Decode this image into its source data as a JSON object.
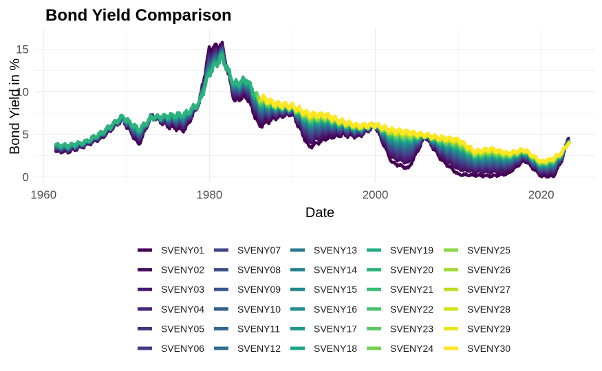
{
  "chart_data": {
    "type": "line",
    "title": "Bond Yield Comparison",
    "xlabel": "Date",
    "ylabel": "Bond Yield in %",
    "xlim": [
      1958.9,
      2026.5
    ],
    "ylim": [
      -0.6,
      17.4
    ],
    "x_ticks": [
      1960,
      1980,
      2000,
      2020
    ],
    "y_ticks": [
      0,
      5,
      10,
      15
    ],
    "grid": true,
    "legend_position": "bottom",
    "short_key": {
      "x": [
        1961.5,
        1963,
        1965,
        1967,
        1969.5,
        1971.5,
        1973,
        1975,
        1977,
        1978.8,
        1980,
        1981.5,
        1983,
        1984.5,
        1986,
        1988,
        1990,
        1992,
        1994,
        1996,
        1998,
        2000,
        2002,
        2004,
        2006,
        2008,
        2010,
        2012,
        2014,
        2016,
        2018,
        2020,
        2021.5,
        2022.5,
        2023.3
      ],
      "y": [
        3.0,
        3.0,
        3.7,
        4.6,
        6.8,
        3.8,
        7.2,
        6.0,
        5.5,
        8.8,
        15.0,
        15.5,
        9.0,
        9.5,
        6.0,
        7.0,
        7.5,
        3.5,
        4.5,
        5.0,
        4.8,
        6.0,
        1.7,
        1.0,
        4.8,
        2.0,
        0.3,
        0.2,
        0.1,
        0.4,
        2.0,
        0.1,
        0.1,
        2.0,
        4.8
      ]
    },
    "long_key": {
      "x": [
        1961.5,
        1963,
        1965,
        1967,
        1969.5,
        1971.5,
        1973,
        1975,
        1977,
        1978.8,
        1980,
        1981.5,
        1983,
        1984.5,
        1986,
        1988,
        1990,
        1992,
        1994,
        1996,
        1998,
        2000,
        2002,
        2004,
        2006,
        2008,
        2010,
        2012,
        2014,
        2016,
        2018,
        2020,
        2021.5,
        2022.5,
        2023.3
      ],
      "y": [
        3.9,
        3.9,
        4.2,
        5.3,
        7.2,
        6.0,
        6.9,
        7.5,
        7.8,
        8.7,
        11.5,
        13.7,
        11.4,
        12.0,
        9.5,
        8.6,
        8.3,
        7.4,
        7.3,
        6.5,
        6.0,
        6.1,
        5.5,
        5.3,
        4.9,
        4.6,
        4.4,
        3.0,
        3.3,
        2.8,
        3.2,
        1.8,
        2.2,
        2.9,
        4.0
      ]
    },
    "series": [
      {
        "name": "SVENY01",
        "color": "#440154"
      },
      {
        "name": "SVENY02",
        "color": "#470E61"
      },
      {
        "name": "SVENY03",
        "color": "#481B6D"
      },
      {
        "name": "SVENY04",
        "color": "#482576"
      },
      {
        "name": "SVENY05",
        "color": "#46307E"
      },
      {
        "name": "SVENY06",
        "color": "#443A83"
      },
      {
        "name": "SVENY07",
        "color": "#414487"
      },
      {
        "name": "SVENY08",
        "color": "#3D4E8A"
      },
      {
        "name": "SVENY09",
        "color": "#39568C"
      },
      {
        "name": "SVENY10",
        "color": "#355F8D"
      },
      {
        "name": "SVENY11",
        "color": "#31688E"
      },
      {
        "name": "SVENY12",
        "color": "#2D708E"
      },
      {
        "name": "SVENY13",
        "color": "#2A788E"
      },
      {
        "name": "SVENY14",
        "color": "#26818E"
      },
      {
        "name": "SVENY15",
        "color": "#23888E"
      },
      {
        "name": "SVENY16",
        "color": "#1F908D"
      },
      {
        "name": "SVENY17",
        "color": "#1F998A"
      },
      {
        "name": "SVENY18",
        "color": "#20A386"
      },
      {
        "name": "SVENY19",
        "color": "#25AC82"
      },
      {
        "name": "SVENY20",
        "color": "#2DB27D"
      },
      {
        "name": "SVENY21",
        "color": "#3BBB75"
      },
      {
        "name": "SVENY22",
        "color": "#4AC16D"
      },
      {
        "name": "SVENY23",
        "color": "#5DC863"
      },
      {
        "name": "SVENY24",
        "color": "#73D056"
      },
      {
        "name": "SVENY25",
        "color": "#8BD646"
      },
      {
        "name": "SVENY26",
        "color": "#A2DA37"
      },
      {
        "name": "SVENY27",
        "color": "#BBDF27"
      },
      {
        "name": "SVENY28",
        "color": "#D2E21B"
      },
      {
        "name": "SVENY29",
        "color": "#E8E419"
      },
      {
        "name": "SVENY30",
        "color": "#FDE725"
      }
    ]
  }
}
